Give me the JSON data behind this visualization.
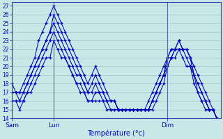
{
  "xlabel": "Température (°c)",
  "bg_color": "#c8e8e8",
  "line_color": "#0000bb",
  "grid_color": "#a0c8c8",
  "ylim": [
    14,
    27.4
  ],
  "ytick_min": 14,
  "ytick_max": 27,
  "xtick_labels": [
    "Sam",
    "Lun",
    "Dim"
  ],
  "xtick_x": [
    0,
    22,
    82
  ],
  "xlim": [
    0,
    110
  ],
  "series": [
    {
      "x": [
        0,
        2,
        4,
        6,
        8,
        10,
        12,
        14,
        16,
        18,
        20,
        22,
        24,
        26,
        28,
        30,
        32,
        34,
        36,
        38,
        40,
        42,
        44,
        46,
        48,
        50,
        52,
        54,
        56,
        58,
        60,
        62,
        64,
        66,
        68,
        70,
        72,
        74,
        76,
        78,
        80,
        82,
        84,
        86,
        88,
        90,
        92,
        94,
        96,
        98,
        100,
        102,
        104,
        106,
        108
      ],
      "y": [
        18,
        17,
        17,
        18,
        19,
        20,
        21,
        23,
        24,
        25,
        26,
        27,
        26,
        25,
        24,
        23,
        22,
        21,
        20,
        19,
        18,
        19,
        20,
        19,
        18,
        17,
        16,
        16,
        15,
        15,
        15,
        15,
        15,
        15,
        15,
        15,
        15,
        16,
        17,
        18,
        19,
        21,
        21,
        22,
        23,
        22,
        22,
        21,
        20,
        19,
        18,
        17,
        16,
        15,
        14
      ]
    },
    {
      "x": [
        0,
        2,
        4,
        6,
        8,
        10,
        12,
        14,
        16,
        18,
        20,
        22,
        24,
        26,
        28,
        30,
        32,
        34,
        36,
        38,
        40,
        42,
        44,
        46,
        48,
        50,
        52,
        54,
        56,
        58,
        60,
        62,
        64,
        66,
        68,
        70,
        72,
        74,
        76,
        78,
        80,
        82,
        84,
        86,
        88,
        90,
        92,
        94,
        96,
        98,
        100,
        102,
        104,
        106,
        108
      ],
      "y": [
        17,
        17,
        17,
        17,
        18,
        19,
        20,
        21,
        22,
        23,
        24,
        25,
        24,
        23,
        22,
        21,
        20,
        19,
        19,
        18,
        17,
        18,
        19,
        18,
        17,
        16,
        16,
        16,
        15,
        15,
        15,
        15,
        15,
        15,
        15,
        15,
        16,
        17,
        18,
        19,
        20,
        21,
        22,
        22,
        23,
        22,
        22,
        21,
        19,
        18,
        17,
        16,
        15,
        15,
        14
      ]
    },
    {
      "x": [
        0,
        2,
        4,
        6,
        8,
        10,
        12,
        14,
        16,
        18,
        20,
        22,
        24,
        26,
        28,
        30,
        32,
        34,
        36,
        38,
        40,
        42,
        44,
        46,
        48,
        50,
        52,
        54,
        56,
        58,
        60,
        62,
        64,
        66,
        68,
        70,
        72,
        74,
        76,
        78,
        80,
        82,
        84,
        86,
        88,
        90,
        92,
        94,
        96,
        98,
        100,
        102,
        104,
        106,
        108
      ],
      "y": [
        17,
        17,
        16,
        17,
        18,
        19,
        20,
        21,
        22,
        23,
        24,
        26,
        25,
        24,
        23,
        22,
        21,
        20,
        19,
        18,
        17,
        17,
        18,
        17,
        17,
        16,
        16,
        16,
        15,
        15,
        15,
        15,
        15,
        15,
        15,
        15,
        15,
        16,
        17,
        18,
        19,
        21,
        22,
        22,
        22,
        22,
        22,
        21,
        19,
        18,
        17,
        16,
        15,
        15,
        14
      ]
    },
    {
      "x": [
        0,
        2,
        4,
        6,
        8,
        10,
        12,
        14,
        16,
        18,
        20,
        22,
        24,
        26,
        28,
        30,
        32,
        34,
        36,
        38,
        40,
        42,
        44,
        46,
        48,
        50,
        52,
        54,
        56,
        58,
        60,
        62,
        64,
        66,
        68,
        70,
        72,
        74,
        76,
        78,
        80,
        82,
        84,
        86,
        88,
        90,
        92,
        94,
        96,
        98,
        100,
        102,
        104,
        106,
        108
      ],
      "y": [
        16,
        16,
        16,
        16,
        17,
        18,
        19,
        20,
        21,
        22,
        23,
        24,
        23,
        22,
        21,
        20,
        19,
        18,
        18,
        17,
        16,
        16,
        17,
        17,
        16,
        16,
        15,
        15,
        15,
        15,
        15,
        15,
        15,
        15,
        15,
        15,
        15,
        16,
        17,
        18,
        19,
        20,
        21,
        22,
        22,
        22,
        21,
        20,
        19,
        17,
        16,
        16,
        15,
        15,
        14
      ]
    },
    {
      "x": [
        0,
        2,
        4,
        6,
        8,
        10,
        12,
        14,
        16,
        18,
        20,
        22,
        24,
        26,
        28,
        30,
        32,
        34,
        36,
        38,
        40,
        42,
        44,
        46,
        48,
        50,
        52,
        54,
        56,
        58,
        60,
        62,
        64,
        66,
        68,
        70,
        72,
        74,
        76,
        78,
        80,
        82,
        84,
        86,
        88,
        90,
        92,
        94,
        96,
        98,
        100,
        102,
        104,
        106,
        108
      ],
      "y": [
        16,
        16,
        15,
        16,
        17,
        17,
        18,
        19,
        20,
        21,
        21,
        23,
        22,
        21,
        21,
        20,
        19,
        18,
        17,
        17,
        16,
        16,
        16,
        16,
        16,
        15,
        15,
        15,
        15,
        15,
        15,
        15,
        15,
        15,
        15,
        15,
        15,
        15,
        16,
        17,
        18,
        20,
        21,
        21,
        22,
        21,
        20,
        20,
        18,
        17,
        16,
        15,
        15,
        15,
        14
      ]
    }
  ]
}
